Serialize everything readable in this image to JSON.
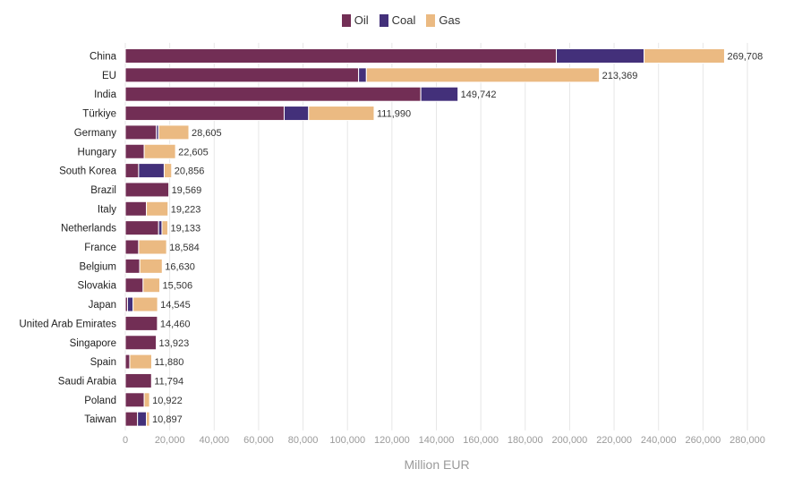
{
  "chart_data": {
    "type": "bar",
    "orientation": "horizontal",
    "stacked": true,
    "xlabel": "Million EUR",
    "xlim": [
      0,
      280000
    ],
    "xticks": [
      0,
      20000,
      40000,
      60000,
      80000,
      100000,
      120000,
      140000,
      160000,
      180000,
      200000,
      220000,
      240000,
      260000,
      280000
    ],
    "xtick_labels": [
      "0",
      "20,000",
      "40,000",
      "60,000",
      "80,000",
      "100,000",
      "120,000",
      "140,000",
      "160,000",
      "180,000",
      "200,000",
      "220,000",
      "240,000",
      "260,000",
      "280,000"
    ],
    "grid": "vertical",
    "legend_position": "top-center",
    "categories": [
      "China",
      "EU",
      "India",
      "Türkiye",
      "Germany",
      "Hungary",
      "South Korea",
      "Brazil",
      "Italy",
      "Netherlands",
      "France",
      "Belgium",
      "Slovakia",
      "Japan",
      "United Arab Emirates",
      "Singapore",
      "Spain",
      "Saudi Arabia",
      "Poland",
      "Taiwan"
    ],
    "totals": [
      269708,
      213369,
      149742,
      111990,
      28605,
      22605,
      20856,
      19569,
      19223,
      19133,
      18584,
      16630,
      15506,
      14545,
      14460,
      13923,
      11880,
      11794,
      10922,
      10897
    ],
    "total_labels": [
      "269,708",
      "213,369",
      "149,742",
      "111,990",
      "28,605",
      "22,605",
      "20,856",
      "19,569",
      "19,223",
      "19,133",
      "18,584",
      "16,630",
      "15,506",
      "14,545",
      "14,460",
      "13,923",
      "11,880",
      "11,794",
      "10,922",
      "10,897"
    ],
    "series": [
      {
        "name": "Oil",
        "color": "#722e55",
        "values": [
          194000,
          105000,
          133000,
          71500,
          14000,
          8500,
          6000,
          19569,
          9500,
          15000,
          6000,
          6500,
          8000,
          1000,
          14460,
          13923,
          2000,
          11794,
          8500,
          5500
        ]
      },
      {
        "name": "Coal",
        "color": "#43307a",
        "values": [
          39500,
          3500,
          16742,
          11000,
          1000,
          0,
          11500,
          0,
          0,
          1500,
          0,
          0,
          0,
          2500,
          0,
          0,
          0,
          0,
          0,
          4000
        ]
      },
      {
        "name": "Gas",
        "color": "#ebba82",
        "values": [
          36208,
          104869,
          0,
          29490,
          13605,
          14105,
          3356,
          0,
          9723,
          2633,
          12584,
          10130,
          7506,
          11045,
          0,
          0,
          9880,
          0,
          2422,
          1397
        ]
      }
    ]
  }
}
